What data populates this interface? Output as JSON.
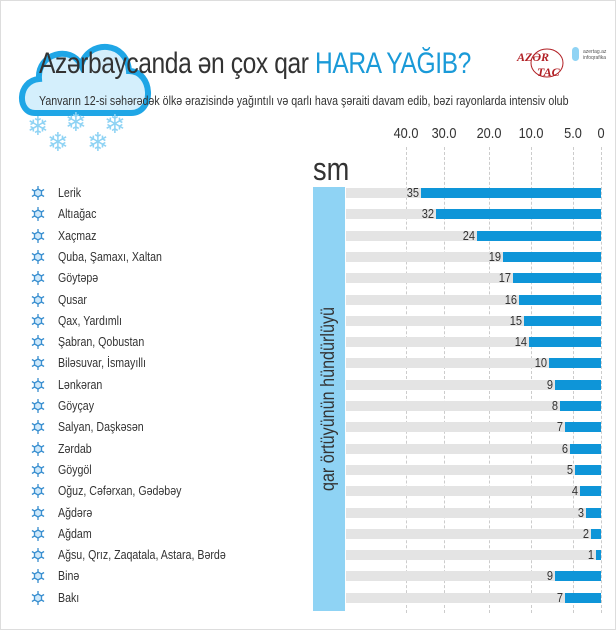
{
  "header": {
    "title_main": "Azərbaycanda ən çox qar ",
    "title_highlight": "HARA YAĞIB?",
    "subtitle": "Yanvarın 12-si səhərədək ölkə ərazisində yağıntılı və qarlı hava şəraiti davam edib, bəzi rayonlarda intensiv olub"
  },
  "logo": {
    "text_top": "AZƏR",
    "text_bottom": "TAC",
    "sub": [
      "azertag.az",
      "infoqrafika"
    ]
  },
  "colors": {
    "accent": "#1a9ad8",
    "bar": "#0e95d8",
    "band": "#8fd3f4",
    "track": "#e4e4e4",
    "logo": "#b11f24"
  },
  "chart_data": {
    "type": "bar",
    "orientation": "horizontal",
    "direction": "right-to-left",
    "unit": "sm",
    "ylabel": "qar örtüyünün hündürlüyü",
    "ticks": [
      "40.0",
      "30.0",
      "20.0",
      "10.0",
      "5.0",
      "0"
    ],
    "grid": true,
    "categories": [
      "Lerik",
      "Altıağac",
      "Xaçmaz",
      "Quba, Şamaxı, Xaltan",
      "Göytəpə",
      "Qusar",
      "Qax, Yardımlı",
      "Şabran, Qobustan",
      "Biləsuvar, İsmayıllı",
      "Lənkəran",
      "Göyçay",
      "Salyan, Daşkəsən",
      "Zərdab",
      "Göygöl",
      "Oğuz, Cəfərxan, Gədəbəy",
      "Ağdərə",
      "Ağdam",
      "Ağsu, Qrız, Zaqatala, Astara, Bərdə",
      "Binə",
      "Bakı"
    ],
    "values": [
      35,
      32,
      24,
      19,
      17,
      16,
      15,
      14,
      10,
      9,
      8,
      7,
      6,
      5,
      4,
      3,
      2,
      1,
      9,
      7
    ]
  }
}
